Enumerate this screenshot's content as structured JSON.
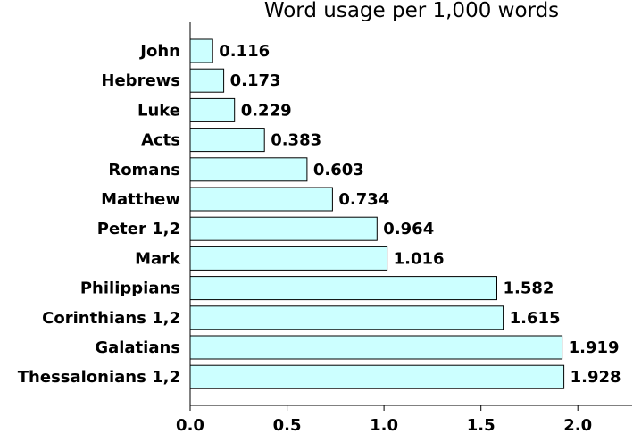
{
  "chart_data": {
    "type": "bar",
    "orientation": "horizontal",
    "title": "Word usage per 1,000 words",
    "xlabel": "",
    "ylabel": "",
    "categories": [
      "John",
      "Hebrews",
      "Luke",
      "Acts",
      "Romans",
      "Matthew",
      "Peter 1,2",
      "Mark",
      "Philippians",
      "Corinthians 1,2",
      "Galatians",
      "Thessalonians 1,2"
    ],
    "values": [
      0.116,
      0.173,
      0.229,
      0.383,
      0.603,
      0.734,
      0.964,
      1.016,
      1.582,
      1.615,
      1.919,
      1.928
    ],
    "value_labels": [
      "0.116",
      "0.173",
      "0.229",
      "0.383",
      "0.603",
      "0.734",
      "0.964",
      "1.016",
      "1.582",
      "1.615",
      "1.919",
      "1.928"
    ],
    "xticks": [
      "0.0",
      "0.5",
      "1.0",
      "1.5",
      "2.0"
    ],
    "xtick_values": [
      0,
      0.5,
      1.0,
      1.5,
      2.0
    ],
    "xlim": [
      0,
      2.28
    ],
    "grid": false,
    "bar_color": "#ccffff",
    "bar_edge_color": "#000000"
  }
}
